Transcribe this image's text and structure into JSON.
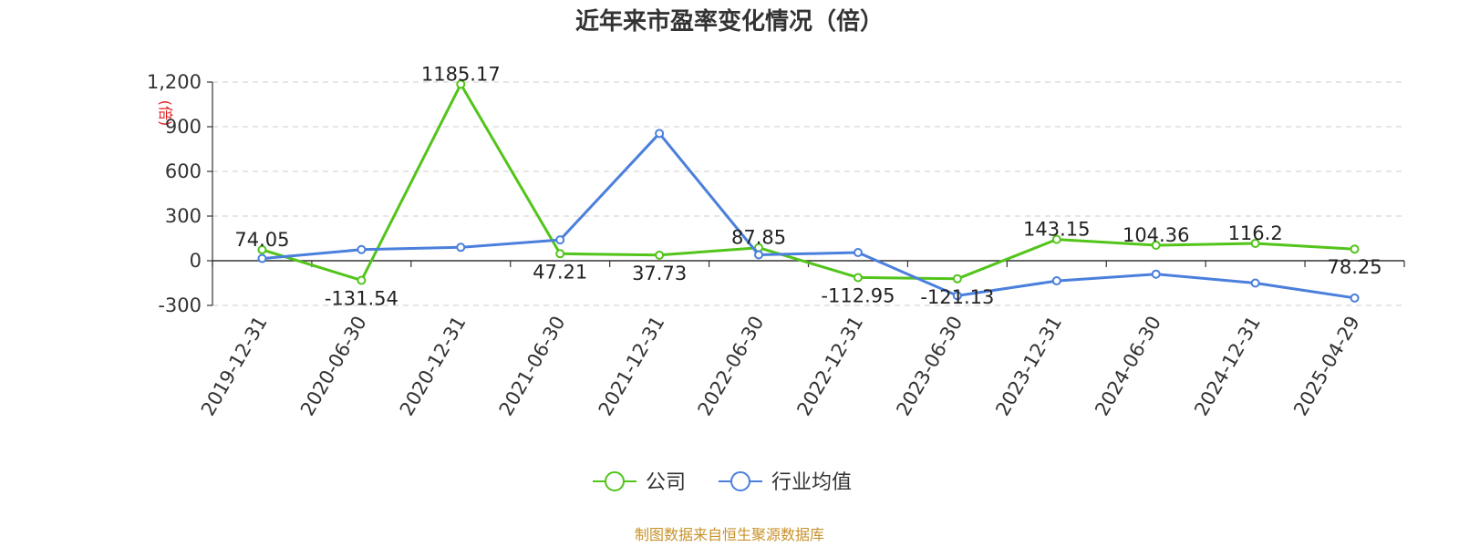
{
  "chart_data": {
    "type": "line",
    "title": "近年来市盈率变化情况（倍）",
    "ylabel": "(倍)",
    "xlabel": "",
    "categories": [
      "2019-12-31",
      "2020-06-30",
      "2020-12-31",
      "2021-06-30",
      "2021-12-31",
      "2022-06-30",
      "2022-12-31",
      "2023-06-30",
      "2023-12-31",
      "2024-06-30",
      "2024-12-31",
      "2025-04-29"
    ],
    "ylim": [
      -300,
      1200
    ],
    "yticks": [
      -300,
      0,
      300,
      600,
      900,
      1200
    ],
    "ytick_labels": [
      "-300",
      "0",
      "300",
      "600",
      "900",
      "1,200"
    ],
    "grid": true,
    "legend_position": "bottom-center",
    "series": [
      {
        "name": "公司",
        "color": "#52c41a",
        "values": [
          74.05,
          -131.54,
          1185.17,
          47.21,
          37.73,
          87.85,
          -112.95,
          -121.13,
          143.15,
          104.36,
          116.2,
          78.25
        ],
        "labels": [
          "74.05",
          "-131.54",
          "1185.17",
          "47.21",
          "37.73",
          "87.85",
          "-112.95",
          "-121.13",
          "143.15",
          "104.36",
          "116.2",
          "78.25"
        ]
      },
      {
        "name": "行业均值",
        "color": "#4a7fdc",
        "values": [
          15,
          75,
          90,
          140,
          855,
          40,
          55,
          -235,
          -135,
          -90,
          -150,
          -250
        ]
      }
    ],
    "source": "制图数据来自恒生聚源数据库"
  }
}
